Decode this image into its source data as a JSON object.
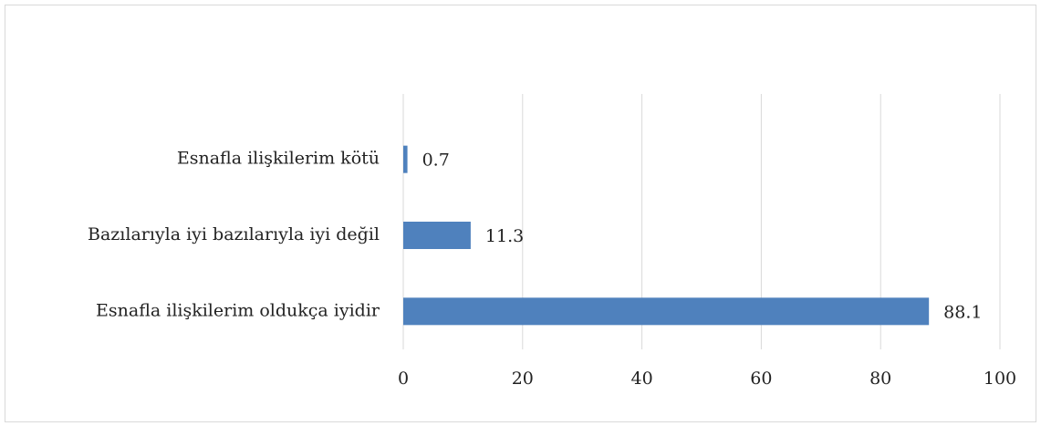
{
  "chart_data": {
    "type": "bar",
    "orientation": "horizontal",
    "categories": [
      "Esnafla ilişkilerim kötü",
      "Bazılarıyla iyi bazılarıyla iyi değil",
      "Esnafla ilişkilerim oldukça iyidir"
    ],
    "values": [
      0.7,
      11.3,
      88.1
    ],
    "color": "#4f81bd",
    "xlim": [
      0,
      100
    ],
    "xticks": [
      0,
      20,
      40,
      60,
      80,
      100
    ],
    "grid": true
  }
}
